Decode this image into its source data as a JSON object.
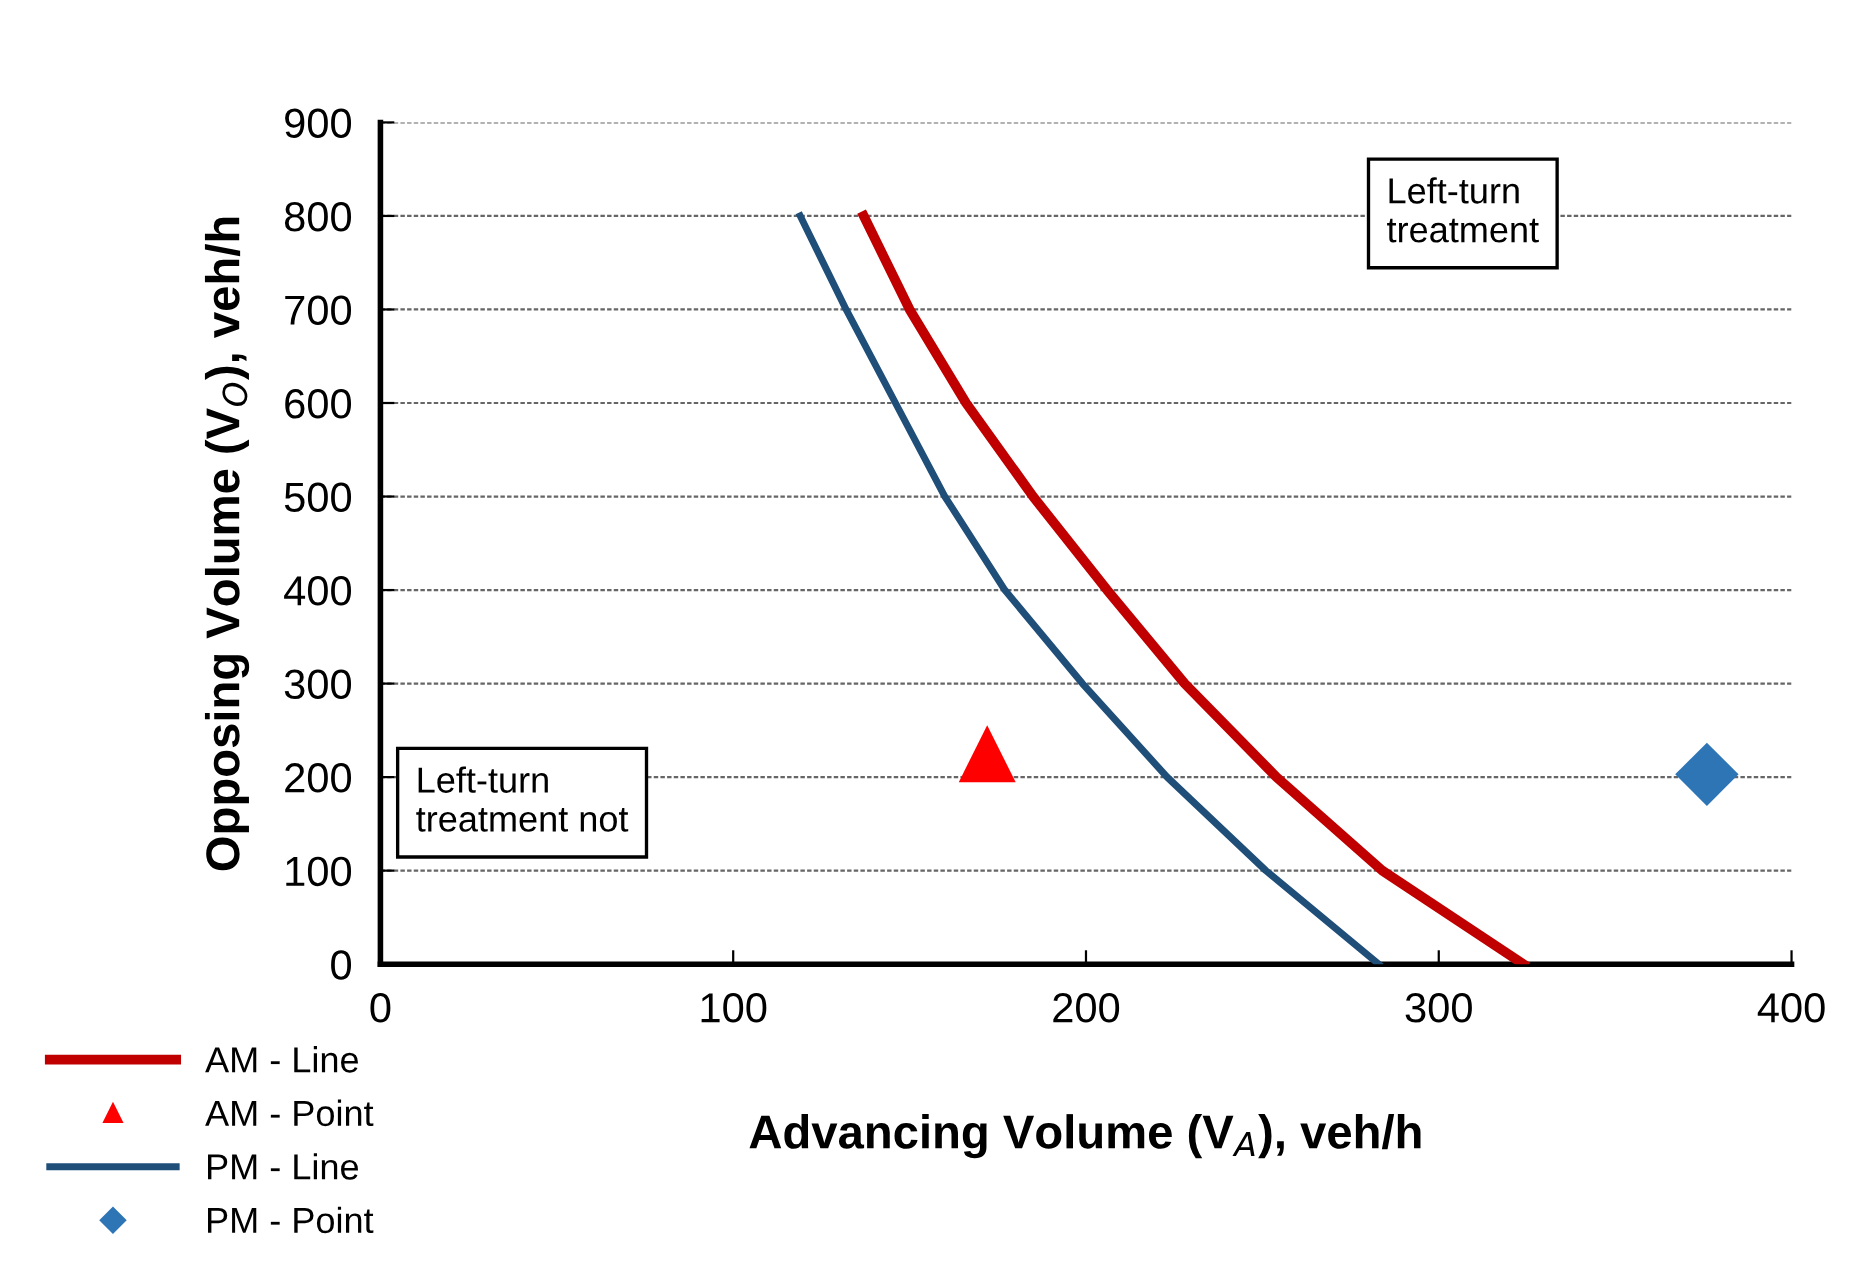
{
  "chart_data": {
    "type": "line",
    "xlabel": "Advancing Volume (V$_{A}$), veh/h",
    "ylabel": "Opposing Volume (V$_{O}$), veh/h",
    "xlim": [
      0,
      400
    ],
    "xticks": [
      0,
      100,
      200,
      300,
      400
    ],
    "ylim": [
      0,
      900
    ],
    "yticks": [
      0,
      100,
      200,
      300,
      400,
      500,
      600,
      700,
      800,
      900
    ],
    "grid": "y",
    "legend": "bottom left",
    "series": [
      {
        "name": "AM - Line",
        "color": "#c00000",
        "marker": "none",
        "x": [
          137,
          150,
          166,
          185,
          206,
          228,
          254,
          284,
          324
        ],
        "values": [
          800,
          700,
          600,
          500,
          400,
          300,
          200,
          100,
          0
        ]
      },
      {
        "name": "AM - Point",
        "type": "scatter",
        "color": "#ff0000",
        "marker": "triangle",
        "x": [
          172
        ],
        "values": [
          225
        ]
      },
      {
        "name": "PM - Line",
        "color": "#1f4e79",
        "marker": "none",
        "x": [
          119,
          132,
          146,
          160,
          177,
          199,
          223,
          251,
          283
        ],
        "values": [
          800,
          700,
          600,
          500,
          400,
          300,
          200,
          100,
          0
        ]
      },
      {
        "name": "PM - Point",
        "type": "scatter",
        "color": "#2e75b6",
        "marker": "diamond",
        "x": [
          376
        ],
        "values": [
          203
        ]
      }
    ],
    "annotations": [
      "Left-turn\ntreatment",
      "Left-turn\ntreatment not"
    ]
  }
}
